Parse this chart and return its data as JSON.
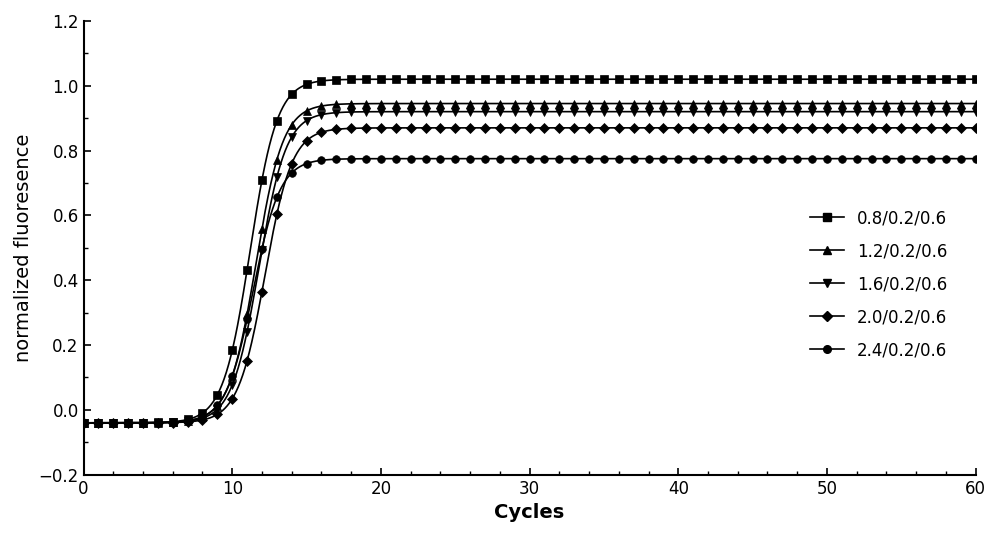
{
  "series": [
    {
      "label": "0.8/0.2/0.6",
      "plateau": 1.02,
      "midpoint": 11.2,
      "steepness": 1.1,
      "marker": "s",
      "color": "#000000"
    },
    {
      "label": "1.2/0.2/0.6",
      "plateau": 0.945,
      "midpoint": 11.6,
      "steepness": 1.1,
      "marker": "^",
      "color": "#000000"
    },
    {
      "label": "1.6/0.2/0.6",
      "plateau": 0.92,
      "midpoint": 11.8,
      "steepness": 1.1,
      "marker": "v",
      "color": "#000000"
    },
    {
      "label": "2.0/0.2/0.6",
      "plateau": 0.87,
      "midpoint": 12.2,
      "steepness": 1.1,
      "marker": "D",
      "color": "#000000"
    },
    {
      "label": "2.4/0.2/0.6",
      "plateau": 0.775,
      "midpoint": 11.4,
      "steepness": 1.1,
      "marker": "o",
      "color": "#000000"
    }
  ],
  "baseline": -0.04,
  "xlabel": "Cycles",
  "ylabel": "normalized fluoresence",
  "xlim": [
    0,
    60
  ],
  "ylim": [
    -0.2,
    1.2
  ],
  "xticks": [
    0,
    10,
    20,
    30,
    40,
    50,
    60
  ],
  "yticks": [
    -0.2,
    0.0,
    0.2,
    0.4,
    0.6,
    0.8,
    1.0,
    1.2
  ],
  "figsize": [
    10.0,
    5.36
  ],
  "dpi": 100,
  "marker_interval": 1,
  "linewidth": 1.2,
  "markersize": 5.5,
  "legend_fontsize": 12,
  "axis_fontsize": 14,
  "tick_fontsize": 12,
  "background_color": "#ffffff"
}
